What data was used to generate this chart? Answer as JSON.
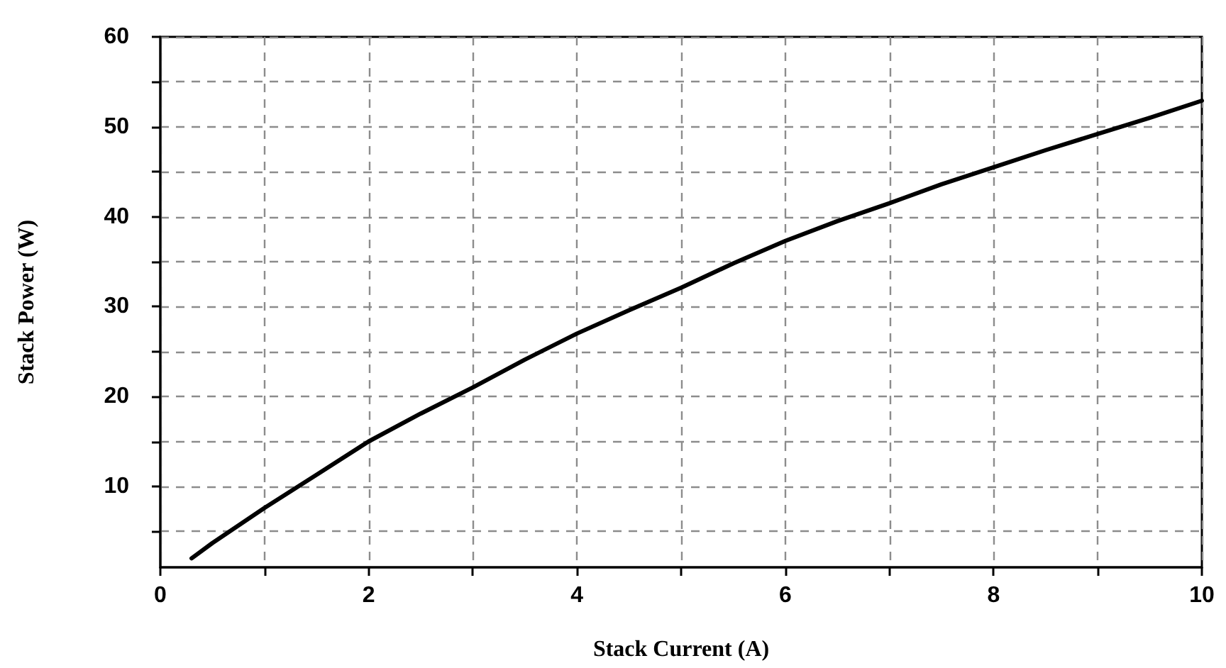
{
  "chart_data": {
    "type": "line",
    "xlabel": "Stack Current (A)",
    "ylabel": "Stack Power (W)",
    "x": [
      0.3,
      0.5,
      1,
      1.5,
      2,
      2.5,
      3,
      3.5,
      4,
      4.5,
      5,
      5.5,
      6,
      6.5,
      7,
      7.5,
      8,
      8.5,
      9,
      9.5,
      10
    ],
    "series": [
      {
        "color": "#000000",
        "values": [
          2,
          3.7,
          7.6,
          11.3,
          15,
          18.1,
          21,
          24.1,
          27,
          29.6,
          32.1,
          34.8,
          37.3,
          39.5,
          41.5,
          43.6,
          45.5,
          47.4,
          49.2,
          51,
          52.9
        ]
      }
    ],
    "xlim": [
      0,
      10
    ],
    "xticks": [
      0,
      {
        "value": 1,
        "label": null
      },
      2,
      {
        "value": 3,
        "label": null
      },
      4,
      {
        "value": 5,
        "label": null
      },
      6,
      {
        "value": 7,
        "label": null
      },
      8,
      {
        "value": 9,
        "label": null
      },
      10
    ],
    "ylim": [
      1,
      60
    ],
    "yticks": [
      {
        "value": 5,
        "label": null
      },
      10,
      {
        "value": 15,
        "label": null
      },
      20,
      {
        "value": 25,
        "label": null
      },
      30,
      {
        "value": 35,
        "label": null
      },
      40,
      {
        "value": 45,
        "label": null
      },
      50,
      {
        "value": 55,
        "label": null
      },
      60
    ],
    "grid": true,
    "marker": "none",
    "line_style": "solid"
  }
}
